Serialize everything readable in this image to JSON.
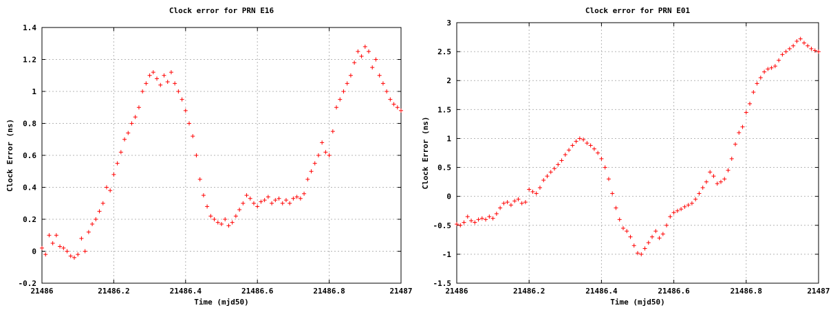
{
  "chart_data": [
    {
      "type": "scatter",
      "title": "Clock error for PRN E16",
      "xlabel": "Time (mjd50)",
      "ylabel": "Clock Error (ns)",
      "xlim": [
        21486,
        21487
      ],
      "ylim": [
        -0.2,
        1.4
      ],
      "xticks": [
        "21486",
        "21486.2",
        "21486.4",
        "21486.6",
        "21486.8",
        "21487"
      ],
      "yticks": [
        "-0.2",
        "0",
        "0.2",
        "0.4",
        "0.6",
        "0.8",
        "1",
        "1.2",
        "1.4"
      ],
      "grid": true,
      "marker": "+",
      "color": "#ff0000",
      "series": [
        {
          "x": [
            21486.0,
            21486.01,
            21486.02,
            21486.03,
            21486.04,
            21486.05,
            21486.06,
            21486.07,
            21486.08,
            21486.09,
            21486.1,
            21486.11,
            21486.12,
            21486.13,
            21486.14,
            21486.15,
            21486.16,
            21486.17,
            21486.18,
            21486.19,
            21486.2,
            21486.21,
            21486.22,
            21486.23,
            21486.24,
            21486.25,
            21486.26,
            21486.27,
            21486.28,
            21486.29,
            21486.3,
            21486.31,
            21486.32,
            21486.33,
            21486.34,
            21486.35,
            21486.36,
            21486.37,
            21486.38,
            21486.39,
            21486.4,
            21486.41,
            21486.42,
            21486.43,
            21486.44,
            21486.45,
            21486.46,
            21486.47,
            21486.48,
            21486.49,
            21486.5,
            21486.51,
            21486.52,
            21486.53,
            21486.54,
            21486.55,
            21486.56,
            21486.57,
            21486.58,
            21486.59,
            21486.6,
            21486.61,
            21486.62,
            21486.63,
            21486.64,
            21486.65,
            21486.66,
            21486.67,
            21486.68,
            21486.69,
            21486.7,
            21486.71,
            21486.72,
            21486.73,
            21486.74,
            21486.75,
            21486.76,
            21486.77,
            21486.78,
            21486.79,
            21486.8,
            21486.81,
            21486.82,
            21486.83,
            21486.84,
            21486.85,
            21486.86,
            21486.87,
            21486.88,
            21486.89,
            21486.9,
            21486.91,
            21486.92,
            21486.93,
            21486.94,
            21486.95,
            21486.96,
            21486.97,
            21486.98,
            21486.99,
            21487.0
          ],
          "y": [
            0.02,
            -0.02,
            0.1,
            0.05,
            0.1,
            0.03,
            0.02,
            0.0,
            -0.03,
            -0.04,
            -0.02,
            0.08,
            0.0,
            0.12,
            0.17,
            0.2,
            0.25,
            0.3,
            0.4,
            0.38,
            0.48,
            0.55,
            0.62,
            0.7,
            0.74,
            0.8,
            0.84,
            0.9,
            1.0,
            1.05,
            1.1,
            1.12,
            1.08,
            1.04,
            1.1,
            1.06,
            1.12,
            1.05,
            1.0,
            0.95,
            0.88,
            0.8,
            0.72,
            0.6,
            0.45,
            0.35,
            0.28,
            0.22,
            0.2,
            0.18,
            0.17,
            0.2,
            0.16,
            0.18,
            0.22,
            0.26,
            0.3,
            0.35,
            0.33,
            0.3,
            0.28,
            0.31,
            0.32,
            0.34,
            0.3,
            0.32,
            0.33,
            0.3,
            0.32,
            0.3,
            0.33,
            0.34,
            0.33,
            0.36,
            0.45,
            0.5,
            0.55,
            0.6,
            0.68,
            0.62,
            0.6,
            0.75,
            0.9,
            0.95,
            1.0,
            1.05,
            1.1,
            1.18,
            1.25,
            1.22,
            1.28,
            1.25,
            1.15,
            1.2,
            1.1,
            1.05,
            1.0,
            0.95,
            0.92,
            0.9,
            0.88
          ]
        }
      ]
    },
    {
      "type": "scatter",
      "title": "Clock error for PRN E01",
      "xlabel": "Time (mjd50)",
      "ylabel": "Clock Error (ns)",
      "xlim": [
        21486,
        21487
      ],
      "ylim": [
        -1.5,
        3
      ],
      "xticks": [
        "21486",
        "21486.2",
        "21486.4",
        "21486.6",
        "21486.8",
        "21487"
      ],
      "yticks": [
        "-1.5",
        "-1",
        "-0.5",
        "0",
        "0.5",
        "1",
        "1.5",
        "2",
        "2.5",
        "3"
      ],
      "grid": true,
      "marker": "+",
      "color": "#ff0000",
      "series": [
        {
          "x": [
            21486.0,
            21486.01,
            21486.02,
            21486.03,
            21486.04,
            21486.05,
            21486.06,
            21486.07,
            21486.08,
            21486.09,
            21486.1,
            21486.11,
            21486.12,
            21486.13,
            21486.14,
            21486.15,
            21486.16,
            21486.17,
            21486.18,
            21486.19,
            21486.2,
            21486.21,
            21486.22,
            21486.23,
            21486.24,
            21486.25,
            21486.26,
            21486.27,
            21486.28,
            21486.29,
            21486.3,
            21486.31,
            21486.32,
            21486.33,
            21486.34,
            21486.35,
            21486.36,
            21486.37,
            21486.38,
            21486.39,
            21486.4,
            21486.41,
            21486.42,
            21486.43,
            21486.44,
            21486.45,
            21486.46,
            21486.47,
            21486.48,
            21486.49,
            21486.5,
            21486.51,
            21486.52,
            21486.53,
            21486.54,
            21486.55,
            21486.56,
            21486.57,
            21486.58,
            21486.59,
            21486.6,
            21486.61,
            21486.62,
            21486.63,
            21486.64,
            21486.65,
            21486.66,
            21486.67,
            21486.68,
            21486.69,
            21486.7,
            21486.71,
            21486.72,
            21486.73,
            21486.74,
            21486.75,
            21486.76,
            21486.77,
            21486.78,
            21486.79,
            21486.8,
            21486.81,
            21486.82,
            21486.83,
            21486.84,
            21486.85,
            21486.86,
            21486.87,
            21486.88,
            21486.89,
            21486.9,
            21486.91,
            21486.92,
            21486.93,
            21486.94,
            21486.95,
            21486.96,
            21486.97,
            21486.98,
            21486.99,
            21487.0
          ],
          "y": [
            -0.48,
            -0.5,
            -0.45,
            -0.35,
            -0.42,
            -0.45,
            -0.4,
            -0.38,
            -0.4,
            -0.35,
            -0.38,
            -0.3,
            -0.2,
            -0.12,
            -0.1,
            -0.15,
            -0.08,
            -0.05,
            -0.12,
            -0.1,
            0.12,
            0.08,
            0.05,
            0.15,
            0.28,
            0.35,
            0.42,
            0.48,
            0.55,
            0.62,
            0.72,
            0.8,
            0.88,
            0.95,
            1.0,
            0.98,
            0.92,
            0.88,
            0.82,
            0.75,
            0.65,
            0.5,
            0.3,
            0.05,
            -0.2,
            -0.4,
            -0.55,
            -0.6,
            -0.7,
            -0.85,
            -0.98,
            -1.0,
            -0.9,
            -0.8,
            -0.7,
            -0.6,
            -0.72,
            -0.65,
            -0.5,
            -0.35,
            -0.28,
            -0.25,
            -0.22,
            -0.18,
            -0.15,
            -0.12,
            -0.05,
            0.05,
            0.15,
            0.25,
            0.42,
            0.35,
            0.22,
            0.25,
            0.3,
            0.45,
            0.65,
            0.9,
            1.1,
            1.2,
            1.45,
            1.6,
            1.8,
            1.95,
            2.05,
            2.15,
            2.2,
            2.22,
            2.25,
            2.35,
            2.45,
            2.5,
            2.55,
            2.6,
            2.68,
            2.72,
            2.65,
            2.6,
            2.55,
            2.52,
            2.5
          ]
        }
      ]
    }
  ]
}
